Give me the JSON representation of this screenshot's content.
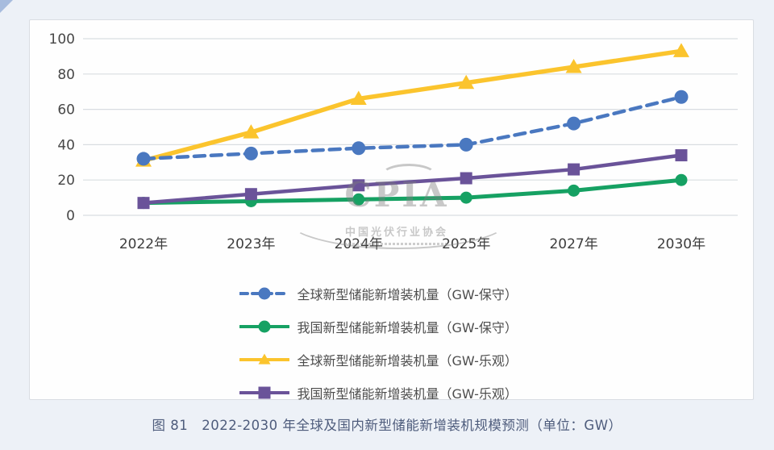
{
  "caption": "图 81　2022-2030 年全球及国内新型储能新增装机规模预测（单位：GW）",
  "watermark": {
    "text": "CPIA",
    "subtext": "中国光伏行业协会"
  },
  "colors": {
    "background": "#edf1f7",
    "card_bg": "#fefefe",
    "card_border": "#d9dde3",
    "grid": "#d9dde1",
    "tick_text": "#474747",
    "xlabel_text": "#3d3d3d",
    "caption_text": "#4e5c7c",
    "watermark": "#7e7e7e",
    "corner_accent": "#a7bcde"
  },
  "chart_data": {
    "type": "line",
    "title": "",
    "xlabel": "",
    "ylabel": "",
    "categories": [
      "2022年",
      "2023年",
      "2024年",
      "2025年",
      "2027年",
      "2030年"
    ],
    "yticks": [
      0,
      20,
      40,
      60,
      80,
      100
    ],
    "ylim": [
      0,
      100
    ],
    "grid": true,
    "legend_position": "bottom",
    "draw_order": [
      1,
      2,
      3,
      0
    ],
    "series": [
      {
        "name": "全球新型储能新增装机量（GW-保守）",
        "values": [
          32,
          35,
          38,
          40,
          52,
          67
        ],
        "color": "#4a78c0",
        "marker": "circle",
        "dash": true,
        "lw": 4.5,
        "ms": 8.5
      },
      {
        "name": "我国新型储能新增装机量（GW-保守）",
        "values": [
          7,
          8,
          9,
          10,
          14,
          20
        ],
        "color": "#16a163",
        "marker": "circle",
        "dash": false,
        "lw": 5,
        "ms": 7.5
      },
      {
        "name": "全球新型储能新增装机量（GW-乐观）",
        "values": [
          31,
          47,
          66,
          75,
          84,
          93
        ],
        "color": "#fbc42d",
        "marker": "triangle",
        "dash": false,
        "lw": 5.5,
        "ms": 10
      },
      {
        "name": "我国新型储能新增装机量（GW-乐观）",
        "values": [
          7,
          12,
          17,
          21,
          26,
          34
        ],
        "color": "#6a5399",
        "marker": "square",
        "dash": false,
        "lw": 4.5,
        "ms": 7.5
      }
    ]
  }
}
